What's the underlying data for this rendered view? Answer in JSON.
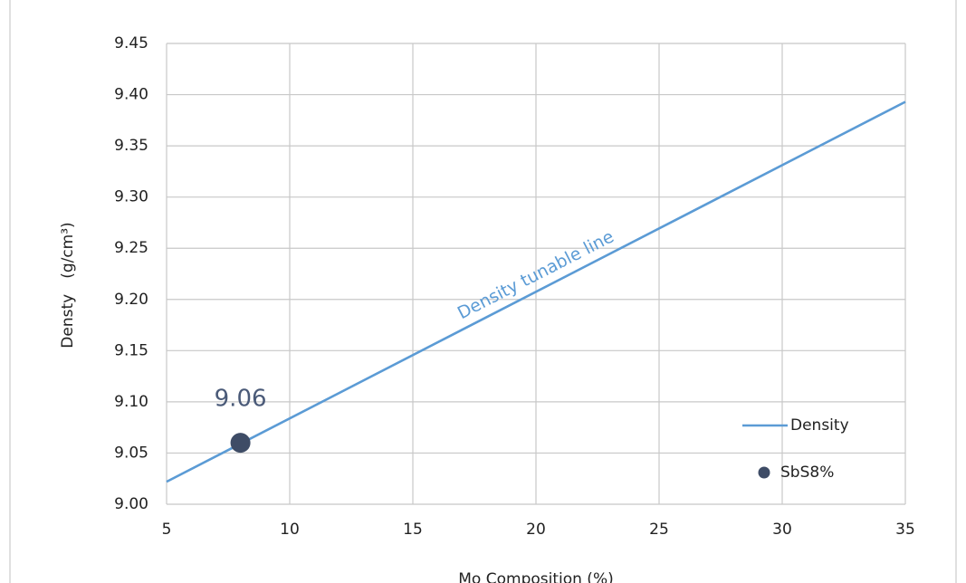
{
  "chart_data": {
    "type": "line",
    "x_label": "Mo Composition (%)",
    "y_label": "Densty　(g/cm³)",
    "annotation": "Density tunable line",
    "series": [
      {
        "name": "Density",
        "type": "line",
        "color": "#5b9bd5",
        "x": [
          5,
          35
        ],
        "values": [
          9.022,
          9.393
        ]
      },
      {
        "name": "SbS8%",
        "type": "scatter",
        "color": "#3e4c66",
        "x": [
          8
        ],
        "values": [
          9.06
        ]
      }
    ],
    "xlim": [
      5,
      35
    ],
    "xticks": [
      5,
      10,
      15,
      20,
      25,
      30,
      35
    ],
    "ylim": [
      9,
      9.45
    ],
    "yticks": [
      {
        "value": 9,
        "label": "9.00"
      },
      9.05,
      {
        "value": 9.1,
        "label": "9.10"
      },
      9.15,
      {
        "value": 9.2,
        "label": "9.20"
      },
      9.25,
      {
        "value": 9.3,
        "label": "9.30"
      },
      9.35,
      {
        "value": 9.4,
        "label": "9.40"
      },
      9.45
    ],
    "grid": true,
    "legend": "lower right"
  }
}
